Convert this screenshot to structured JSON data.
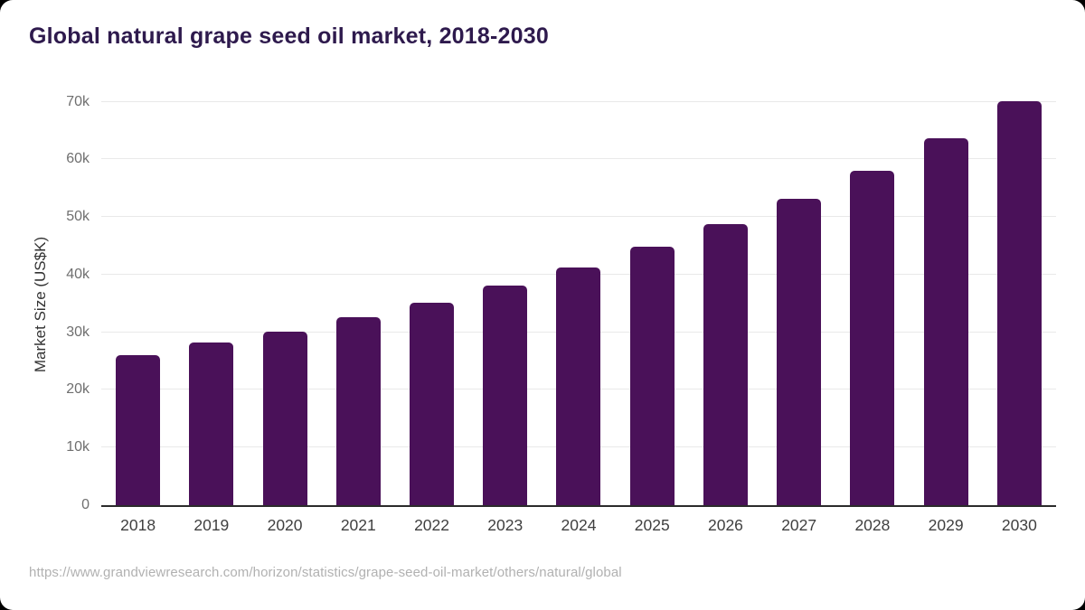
{
  "header": {
    "title": "Global natural grape seed oil market, 2018-2030"
  },
  "chart_data": {
    "type": "bar",
    "title": "Global natural grape seed oil market, 2018-2030",
    "categories": [
      "2018",
      "2019",
      "2020",
      "2021",
      "2022",
      "2023",
      "2024",
      "2025",
      "2026",
      "2027",
      "2028",
      "2029",
      "2030"
    ],
    "values": [
      26000,
      28200,
      30100,
      32600,
      35100,
      38100,
      41200,
      44900,
      48700,
      53100,
      58100,
      63700,
      70100
    ],
    "xlabel": "",
    "ylabel": "Market Size (US$K)",
    "ylim": [
      0,
      70000
    ],
    "yticks": [
      {
        "value": 0,
        "label": "0"
      },
      {
        "value": 10000,
        "label": "10k"
      },
      {
        "value": 20000,
        "label": "20k"
      },
      {
        "value": 30000,
        "label": "30k"
      },
      {
        "value": 40000,
        "label": "40k"
      },
      {
        "value": 50000,
        "label": "50k"
      },
      {
        "value": 60000,
        "label": "60k"
      },
      {
        "value": 70000,
        "label": "70k"
      }
    ],
    "grid": true,
    "legend": "none",
    "bar_color": "#4a1159"
  },
  "colors": {
    "title": "#2e1a4d",
    "bar": "#4a1159",
    "axis_line": "#2b2b2b",
    "gridline": "#e9e9e9",
    "y_tick_label": "#6f6f6f",
    "x_tick_label": "#3f3f3f",
    "footer_text": "#b1b1b1"
  },
  "footer": {
    "source_url": "https://www.grandviewresearch.com/horizon/statistics/grape-seed-oil-market/others/natural/global"
  }
}
